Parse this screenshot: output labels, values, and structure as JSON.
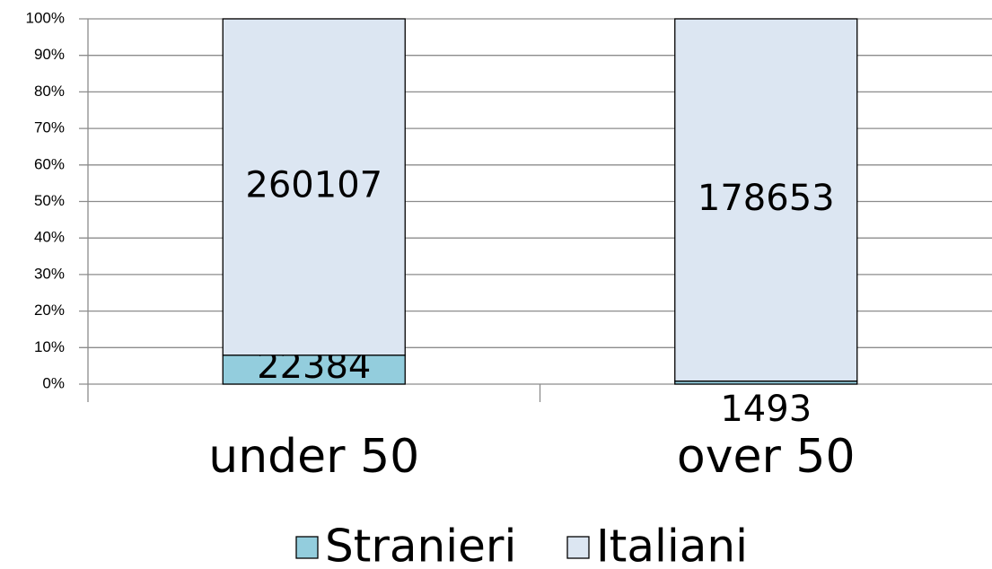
{
  "chart_data": {
    "type": "bar",
    "stack": "percent",
    "categories": [
      "under 50",
      "over 50"
    ],
    "series": [
      {
        "name": "Stranieri",
        "color": "#93cddd",
        "values": [
          22384,
          1493
        ]
      },
      {
        "name": "Italiani",
        "color": "#dce6f2",
        "values": [
          260107,
          178653
        ]
      }
    ],
    "ylim": [
      0,
      100
    ],
    "yticks": [
      {
        "value": 0,
        "label": "0%"
      },
      {
        "value": 10,
        "label": "10%"
      },
      {
        "value": 20,
        "label": "20%"
      },
      {
        "value": 30,
        "label": "30%"
      },
      {
        "value": 40,
        "label": "40%"
      },
      {
        "value": 50,
        "label": "50%"
      },
      {
        "value": 60,
        "label": "60%"
      },
      {
        "value": 70,
        "label": "70%"
      },
      {
        "value": 80,
        "label": "80%"
      },
      {
        "value": 90,
        "label": "90%"
      },
      {
        "value": 100,
        "label": "100%"
      }
    ],
    "grid": true,
    "legend": "bottom"
  }
}
